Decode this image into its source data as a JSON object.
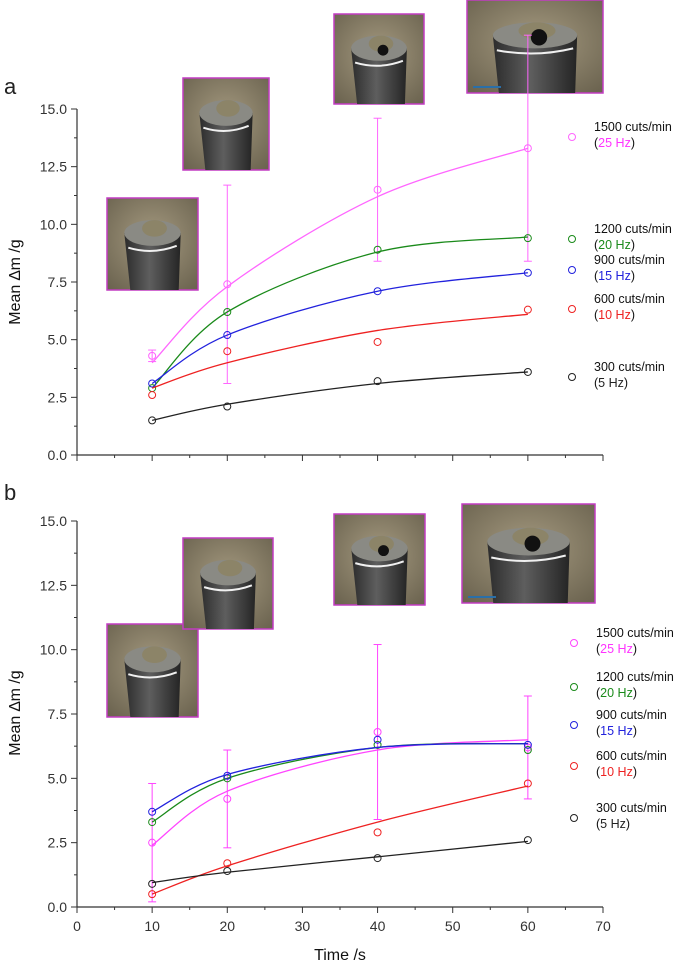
{
  "chart_data": [
    {
      "panel": "a",
      "type": "scatter",
      "ylabel": "Mean ∆m /g",
      "xlim": [
        0,
        70
      ],
      "ylim": [
        0,
        15
      ],
      "yticks": [
        "0.0",
        "2.5",
        "5.0",
        "7.5",
        "10.0",
        "12.5",
        "15.0"
      ],
      "x": [
        10,
        20,
        40,
        60
      ],
      "series": [
        {
          "line1": "1500 cuts/min",
          "line2_open": "(",
          "line2_freq": "25 Hz",
          "line2_close": ")",
          "color": "#ff66ff",
          "freq_color": "#ff33ff",
          "values": [
            4.3,
            7.4,
            11.5,
            13.3
          ],
          "fit": [
            4.0,
            7.3,
            11.2,
            13.3
          ],
          "err": [
            0.25,
            4.3,
            3.1,
            4.9
          ]
        },
        {
          "line1": "1200 cuts/min",
          "line2_open": "(",
          "line2_freq": "20 Hz",
          "line2_close": ")",
          "color": "#1a8a1a",
          "freq_color": "#1a8a1a",
          "values": [
            2.9,
            6.2,
            8.9,
            9.4
          ],
          "fit": [
            2.9,
            6.2,
            8.8,
            9.45
          ],
          "err": null
        },
        {
          "line1": "900 cuts/min",
          "line2_open": "(",
          "line2_freq": "15 Hz",
          "line2_close": ")",
          "color": "#2222dd",
          "freq_color": "#2222dd",
          "values": [
            3.1,
            5.2,
            7.1,
            7.9
          ],
          "fit": [
            3.1,
            5.2,
            7.1,
            7.9
          ],
          "err": null
        },
        {
          "line1": "600 cuts/min",
          "line2_open": "(",
          "line2_freq": "10 Hz",
          "line2_close": ")",
          "color": "#ee2222",
          "freq_color": "#ee2222",
          "values": [
            2.6,
            4.5,
            4.9,
            6.3
          ],
          "fit": [
            2.9,
            4.0,
            5.4,
            6.1
          ],
          "err": null
        },
        {
          "line1": "300 cuts/min",
          "line2_open": "(",
          "line2_freq": "5 Hz",
          "line2_close": ")",
          "color": "#222222",
          "freq_color": "#222222",
          "values": [
            1.5,
            2.1,
            3.2,
            3.6
          ],
          "fit": [
            1.5,
            2.2,
            3.1,
            3.6
          ],
          "err": null
        }
      ]
    },
    {
      "panel": "b",
      "type": "scatter",
      "ylabel": "Mean ∆m /g",
      "xlabel": "Time /s",
      "xlim": [
        0,
        70
      ],
      "ylim": [
        0,
        15
      ],
      "xticks": [
        "0",
        "10",
        "20",
        "30",
        "40",
        "50",
        "60",
        "70"
      ],
      "yticks": [
        "0.0",
        "2.5",
        "5.0",
        "7.5",
        "10.0",
        "12.5",
        "15.0"
      ],
      "x": [
        10,
        20,
        40,
        60
      ],
      "series": [
        {
          "line1": "1500 cuts/min",
          "line2_open": "(",
          "line2_freq": "25 Hz",
          "line2_close": ")",
          "color": "#ff44ff",
          "freq_color": "#ff33ff",
          "values": [
            2.5,
            4.2,
            6.8,
            6.2
          ],
          "fit": [
            2.4,
            4.5,
            6.1,
            6.5
          ],
          "err": [
            2.3,
            1.9,
            3.4,
            2.0
          ]
        },
        {
          "line1": "1200 cuts/min",
          "line2_open": "(",
          "line2_freq": "20 Hz",
          "line2_close": ")",
          "color": "#1a8a1a",
          "freq_color": "#1a8a1a",
          "values": [
            3.3,
            5.0,
            6.3,
            6.1
          ],
          "fit": [
            3.3,
            5.0,
            6.2,
            6.35
          ],
          "err": null
        },
        {
          "line1": "900 cuts/min",
          "line2_open": "(",
          "line2_freq": "15 Hz",
          "line2_close": ")",
          "color": "#2222dd",
          "freq_color": "#2222dd",
          "values": [
            3.7,
            5.1,
            6.5,
            6.3
          ],
          "fit": [
            3.7,
            5.15,
            6.2,
            6.35
          ],
          "err": null
        },
        {
          "line1": "600 cuts/min",
          "line2_open": "(",
          "line2_freq": "10 Hz",
          "line2_close": ")",
          "color": "#ee2222",
          "freq_color": "#ee2222",
          "values": [
            0.5,
            1.7,
            2.9,
            4.8
          ],
          "fit": [
            0.5,
            1.6,
            3.3,
            4.7
          ],
          "err": null
        },
        {
          "line1": "300 cuts/min",
          "line2_open": "(",
          "line2_freq": "5 Hz",
          "line2_close": ")",
          "color": "#222222",
          "freq_color": "#222222",
          "values": [
            0.9,
            1.4,
            1.9,
            2.6
          ],
          "fit": [
            0.95,
            1.35,
            1.95,
            2.55
          ],
          "err": null
        }
      ]
    }
  ]
}
